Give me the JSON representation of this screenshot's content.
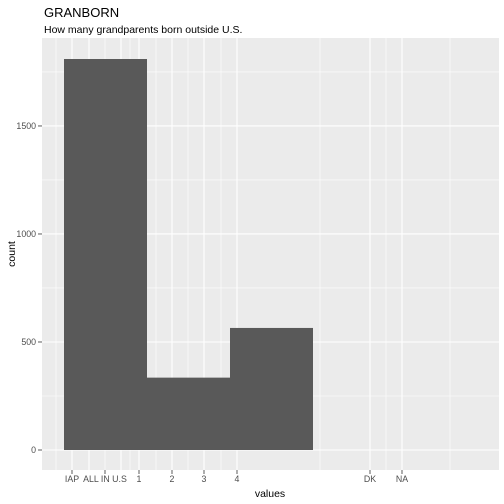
{
  "chart_data": {
    "type": "bar",
    "title": "GRANBORN",
    "subtitle": "How many grandparents born outside U.S.",
    "xlabel": "values",
    "ylabel": "count",
    "x_tick_labels": [
      "IAP",
      "ALL IN U.S",
      "1",
      "2",
      "3",
      "4",
      "DK",
      "NA"
    ],
    "y_ticks": [
      0,
      500,
      1000,
      1500
    ],
    "ylim": [
      0,
      1810
    ],
    "bars": [
      {
        "label": "IAP / ALL IN U.S",
        "value": 1810
      },
      {
        "label": "1 / 2",
        "value": 335
      },
      {
        "label": "3 / 4",
        "value": 335
      },
      {
        "label": "4+",
        "value": 565
      }
    ],
    "grid": true,
    "panel_background": "#ebebeb",
    "bar_color": "#595959",
    "grid_color": "#ffffff"
  }
}
